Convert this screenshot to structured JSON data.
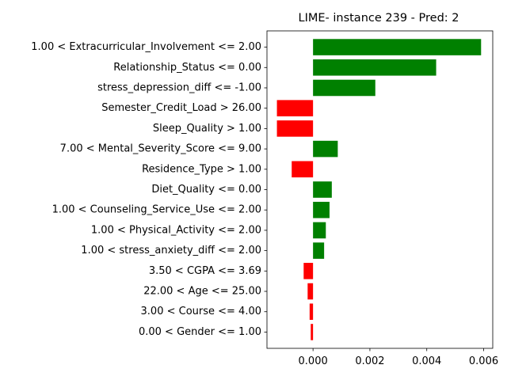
{
  "chart_data": {
    "type": "bar",
    "orientation": "horizontal",
    "title": "LIME- instance 239 - Pred: 2",
    "xlabel": "",
    "ylabel": "",
    "xlim": [
      -0.00162,
      0.00632
    ],
    "xticks": [
      0.0,
      0.002,
      0.004,
      0.006
    ],
    "xtick_labels": [
      "0.000",
      "0.002",
      "0.004",
      "0.006"
    ],
    "categories": [
      "1.00 < Extracurricular_Involvement <= 2.00",
      "Relationship_Status <= 0.00",
      "stress_depression_diff <= -1.00",
      "Semester_Credit_Load > 26.00",
      "Sleep_Quality > 1.00",
      "7.00 < Mental_Severity_Score <= 9.00",
      "Residence_Type > 1.00",
      "Diet_Quality <= 0.00",
      "1.00 < Counseling_Service_Use <= 2.00",
      "1.00 < Physical_Activity <= 2.00",
      "1.00 < stress_anxiety_diff <= 2.00",
      "3.50 < CGPA <= 3.69",
      "22.00 < Age <= 25.00",
      "3.00 < Course <= 4.00",
      "0.00 < Gender <= 1.00"
    ],
    "values": [
      0.00591,
      0.00433,
      0.00219,
      -0.00127,
      -0.00127,
      0.00087,
      -0.00075,
      0.00066,
      0.00058,
      0.00045,
      0.00039,
      -0.00033,
      -0.00019,
      -0.00012,
      -8e-05
    ],
    "colors": {
      "positive": "#008000",
      "negative": "#ff0000"
    },
    "grid": false,
    "legend": "none"
  }
}
